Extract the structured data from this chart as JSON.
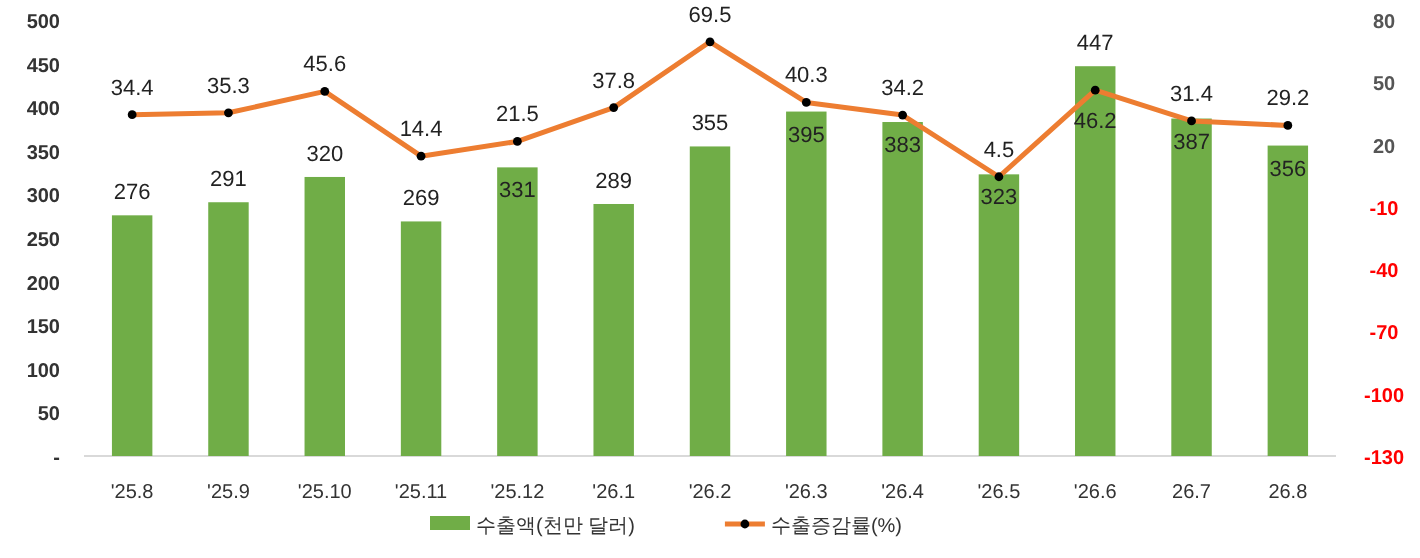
{
  "chart_data": {
    "type": "bar",
    "categories": [
      "'25.8",
      "'25.9",
      "'25.10",
      "'25.11",
      "'25.12",
      "'26.1",
      "'26.2",
      "'26.3",
      "'26.4",
      "'26.5",
      "'26.6",
      "26.7",
      "26.8"
    ],
    "series": [
      {
        "name": "수출액(천만 달러)",
        "color": "#70ad47",
        "values": [
          276,
          291,
          320,
          269,
          331,
          289,
          355,
          395,
          383,
          323,
          447,
          387,
          356
        ]
      },
      {
        "name": "수출증감률(%)",
        "type": "line",
        "axis": "y2",
        "color": "#ed7d31",
        "marker": "circle",
        "values": [
          34.4,
          35.3,
          45.6,
          14.4,
          21.5,
          37.8,
          69.5,
          40.3,
          34.2,
          4.5,
          46.2,
          31.4,
          29.2
        ]
      }
    ],
    "ylim": [
      0,
      500
    ],
    "yticks": [
      {
        "value": 0,
        "label": "-"
      },
      50,
      100,
      150,
      200,
      250,
      300,
      350,
      400,
      450,
      500
    ],
    "y2lim": [
      -130,
      80
    ],
    "y2ticks": [
      -130,
      -100,
      -70,
      -40,
      -10,
      20,
      50,
      80
    ],
    "data_labels": true,
    "legend": "bottom",
    "grid": false
  }
}
